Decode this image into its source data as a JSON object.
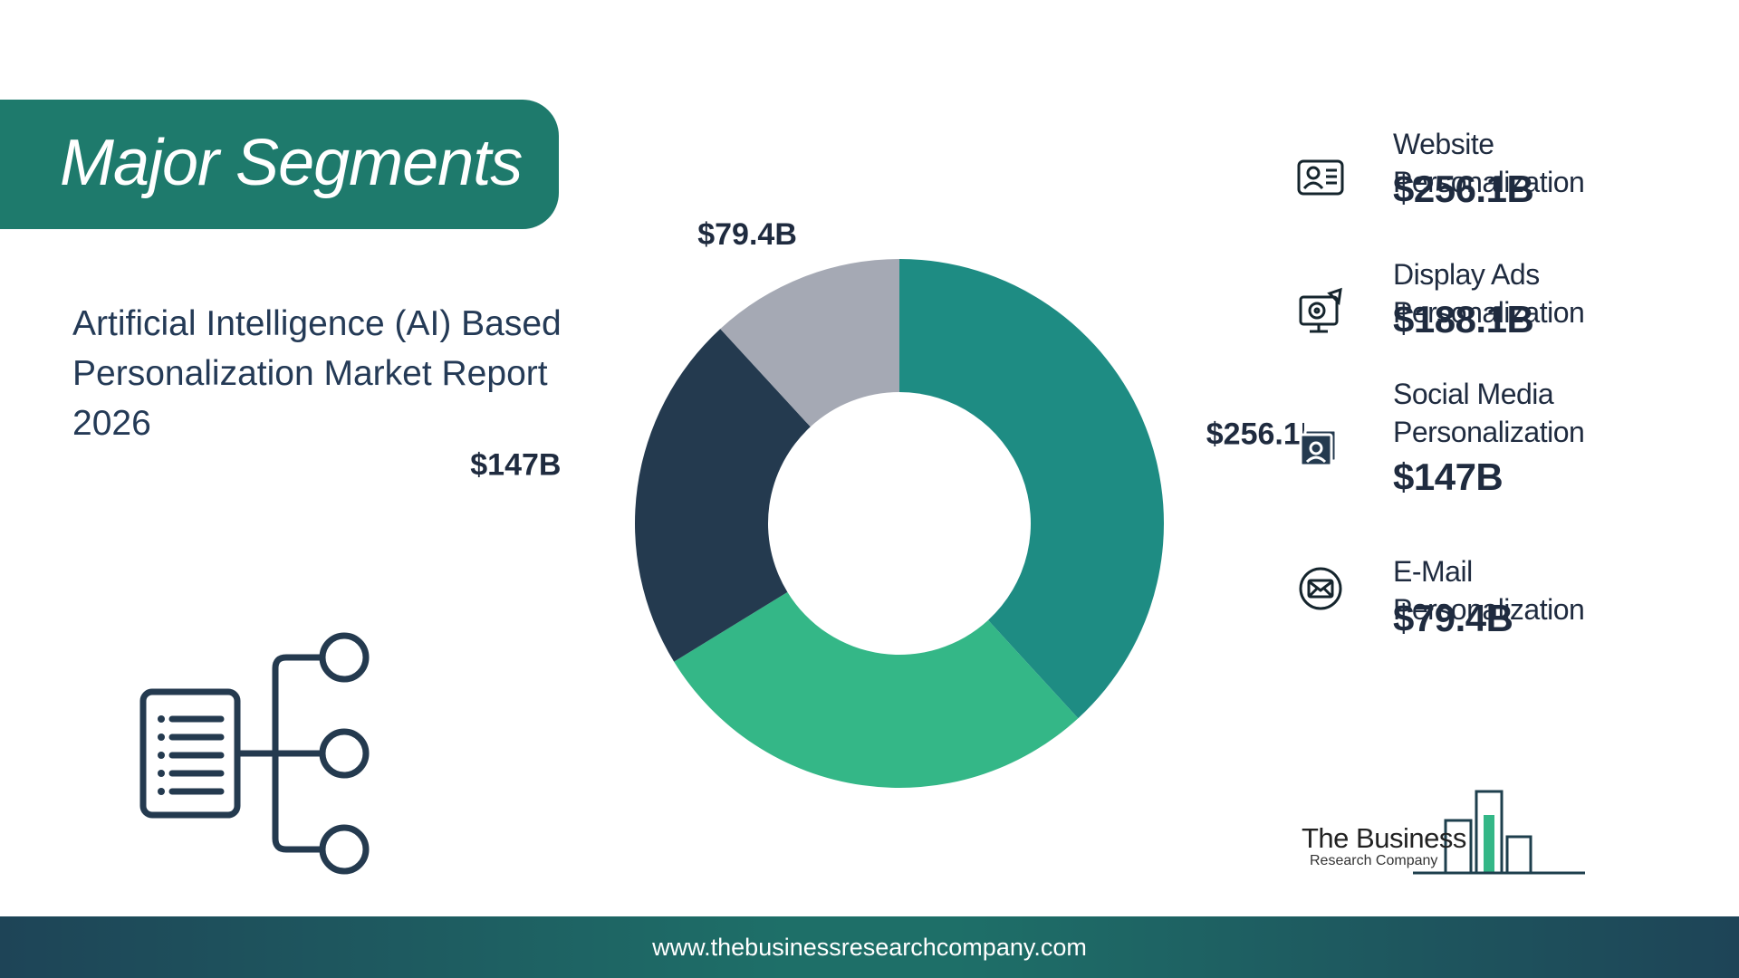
{
  "header": {
    "title": "Major Segments"
  },
  "report": {
    "title": "Artificial Intelligence (AI) Based Personalization Market Report 2026"
  },
  "chart_data": {
    "type": "pie",
    "variant": "donut",
    "categories": [
      "Website Personalization",
      "Display Ads Personalization",
      "Social Media Personalization",
      "E-Mail Personalization"
    ],
    "values": [
      256.1,
      188.1,
      147,
      79.4
    ],
    "labels": [
      "$256.1B",
      "$188.1B",
      "$147B",
      "$79.4B"
    ],
    "colors": [
      "#1e8c83",
      "#34b787",
      "#243a4f",
      "#a5a9b4"
    ],
    "unit": "$B"
  },
  "legend": {
    "items": [
      {
        "name": "Website Personalization",
        "value": "$256.1B",
        "icon": "profile-card-icon",
        "color": "#1e8c83"
      },
      {
        "name": "Display Ads Personalization",
        "value": "$188.1B",
        "icon": "display-ads-icon",
        "color": "#34b787"
      },
      {
        "name": "Social Media Personalization",
        "value": "$147B",
        "icon": "social-media-icon",
        "color": "#243a4f"
      },
      {
        "name": "E-Mail Personalization",
        "value": "$79.4B",
        "icon": "email-icon",
        "color": "#a5a9b4"
      }
    ]
  },
  "logo": {
    "line1": "The Business",
    "line2": "Research Company"
  },
  "footer": {
    "url": "www.thebusinessresearchcompany.com"
  }
}
